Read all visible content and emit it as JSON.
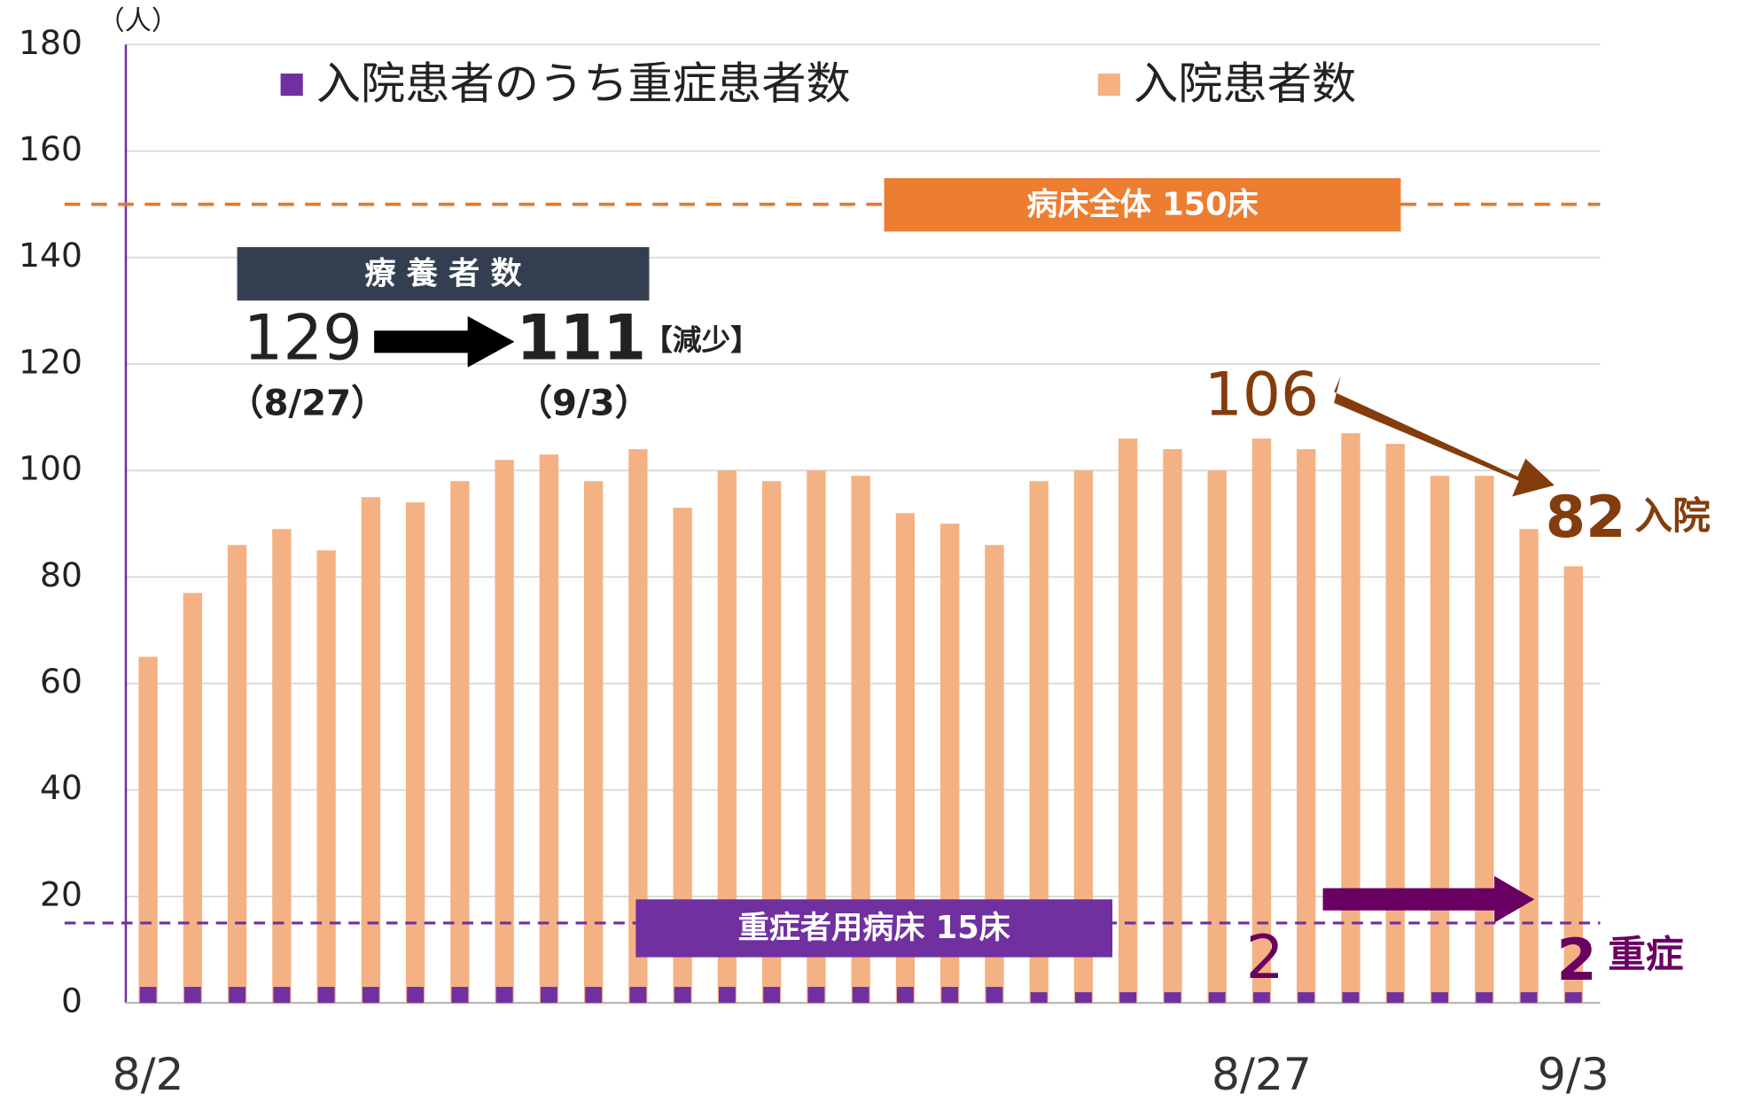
{
  "chart_data": {
    "type": "bar",
    "unit_label": "（人）",
    "categories": [
      "8/2",
      null,
      null,
      null,
      null,
      null,
      null,
      null,
      null,
      null,
      null,
      null,
      null,
      null,
      null,
      null,
      null,
      null,
      null,
      null,
      null,
      null,
      null,
      null,
      null,
      "8/27",
      null,
      null,
      null,
      null,
      null,
      null,
      "9/3"
    ],
    "series": [
      {
        "name": "入院患者のうち重症患者数",
        "color": "#7030a0",
        "values": [
          3,
          3,
          3,
          3,
          3,
          3,
          3,
          3,
          3,
          3,
          3,
          3,
          3,
          3,
          3,
          3,
          3,
          3,
          3,
          3,
          2,
          2,
          2,
          2,
          2,
          2,
          2,
          2,
          2,
          2,
          2,
          2,
          2
        ]
      },
      {
        "name": "入院患者数",
        "color": "#f4b183",
        "values": [
          65,
          77,
          86,
          89,
          85,
          95,
          94,
          98,
          102,
          103,
          98,
          104,
          93,
          100,
          98,
          100,
          99,
          92,
          90,
          86,
          98,
          100,
          106,
          104,
          100,
          106,
          104,
          107,
          105,
          99,
          99,
          89,
          82
        ]
      }
    ],
    "ylim": [
      0,
      180
    ],
    "yticks": [
      0,
      20,
      40,
      60,
      80,
      100,
      120,
      140,
      160,
      180
    ],
    "grid": true,
    "reference_lines": [
      {
        "label": "病床全体 150床",
        "value": 150,
        "color": "#e07a30"
      },
      {
        "label": "重症者用病床 15床",
        "value": 15,
        "color": "#7030a0"
      }
    ],
    "annotations": {
      "recovering_title": "療 養 者 数",
      "recovering_from": "129",
      "recovering_to": "111",
      "recovering_note": "【減少】",
      "from_date": "（8/27）",
      "to_date": "（9/3）",
      "hosp_peak": "106",
      "hosp_now": "82",
      "hosp_now_unit": "入院",
      "severe_peak": "2",
      "severe_now": "2",
      "severe_now_unit": "重症"
    }
  }
}
